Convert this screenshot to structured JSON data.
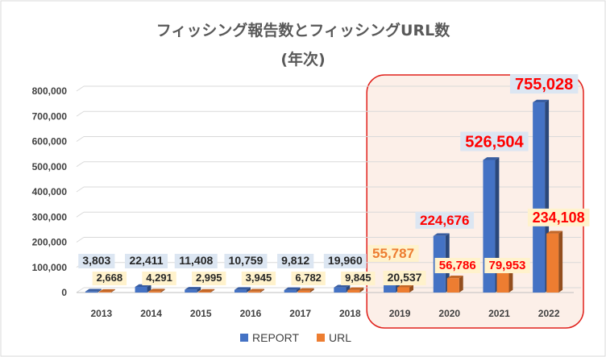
{
  "chart_data": {
    "type": "bar",
    "title": "フィッシング報告数とフィッシングURL数",
    "subtitle": "(年次)",
    "categories": [
      "2013",
      "2014",
      "2015",
      "2016",
      "2017",
      "2018",
      "2019",
      "2020",
      "2021",
      "2022"
    ],
    "series": [
      {
        "name": "REPORT",
        "color": "#4472C4",
        "values": [
          3803,
          22411,
          11408,
          10759,
          9812,
          19960,
          55787,
          224676,
          526504,
          755028
        ],
        "labels": [
          "3,803",
          "22,411",
          "11,408",
          "10,759",
          "9,812",
          "19,960",
          "55,787",
          "224,676",
          "526,504",
          "755,028"
        ]
      },
      {
        "name": "URL",
        "color": "#ED7D31",
        "values": [
          2668,
          4291,
          2995,
          3945,
          6782,
          9845,
          20537,
          56786,
          79953,
          234108
        ],
        "labels": [
          "2,668",
          "4,291",
          "2,995",
          "3,945",
          "6,782",
          "9,845",
          "20,537",
          "56,786",
          "79,953",
          "234,108"
        ]
      }
    ],
    "y_ticks": [
      "0",
      "100,000",
      "200,000",
      "300,000",
      "400,000",
      "500,000",
      "600,000",
      "700,000",
      "800,000"
    ],
    "ylim": [
      0,
      800000
    ],
    "grid": true,
    "legend": "bottom",
    "highlight_categories": [
      "2019",
      "2020",
      "2021",
      "2022"
    ],
    "colors": {
      "highlight_border": "#E0201B",
      "highlight_fill": "#FCEFE8",
      "label_red": "#FF0000",
      "label_orange": "#ED7D31",
      "label_dark": "#262626",
      "report_label_bg": "#DCE6F2",
      "url_label_bg": "#FFF2CC"
    }
  }
}
